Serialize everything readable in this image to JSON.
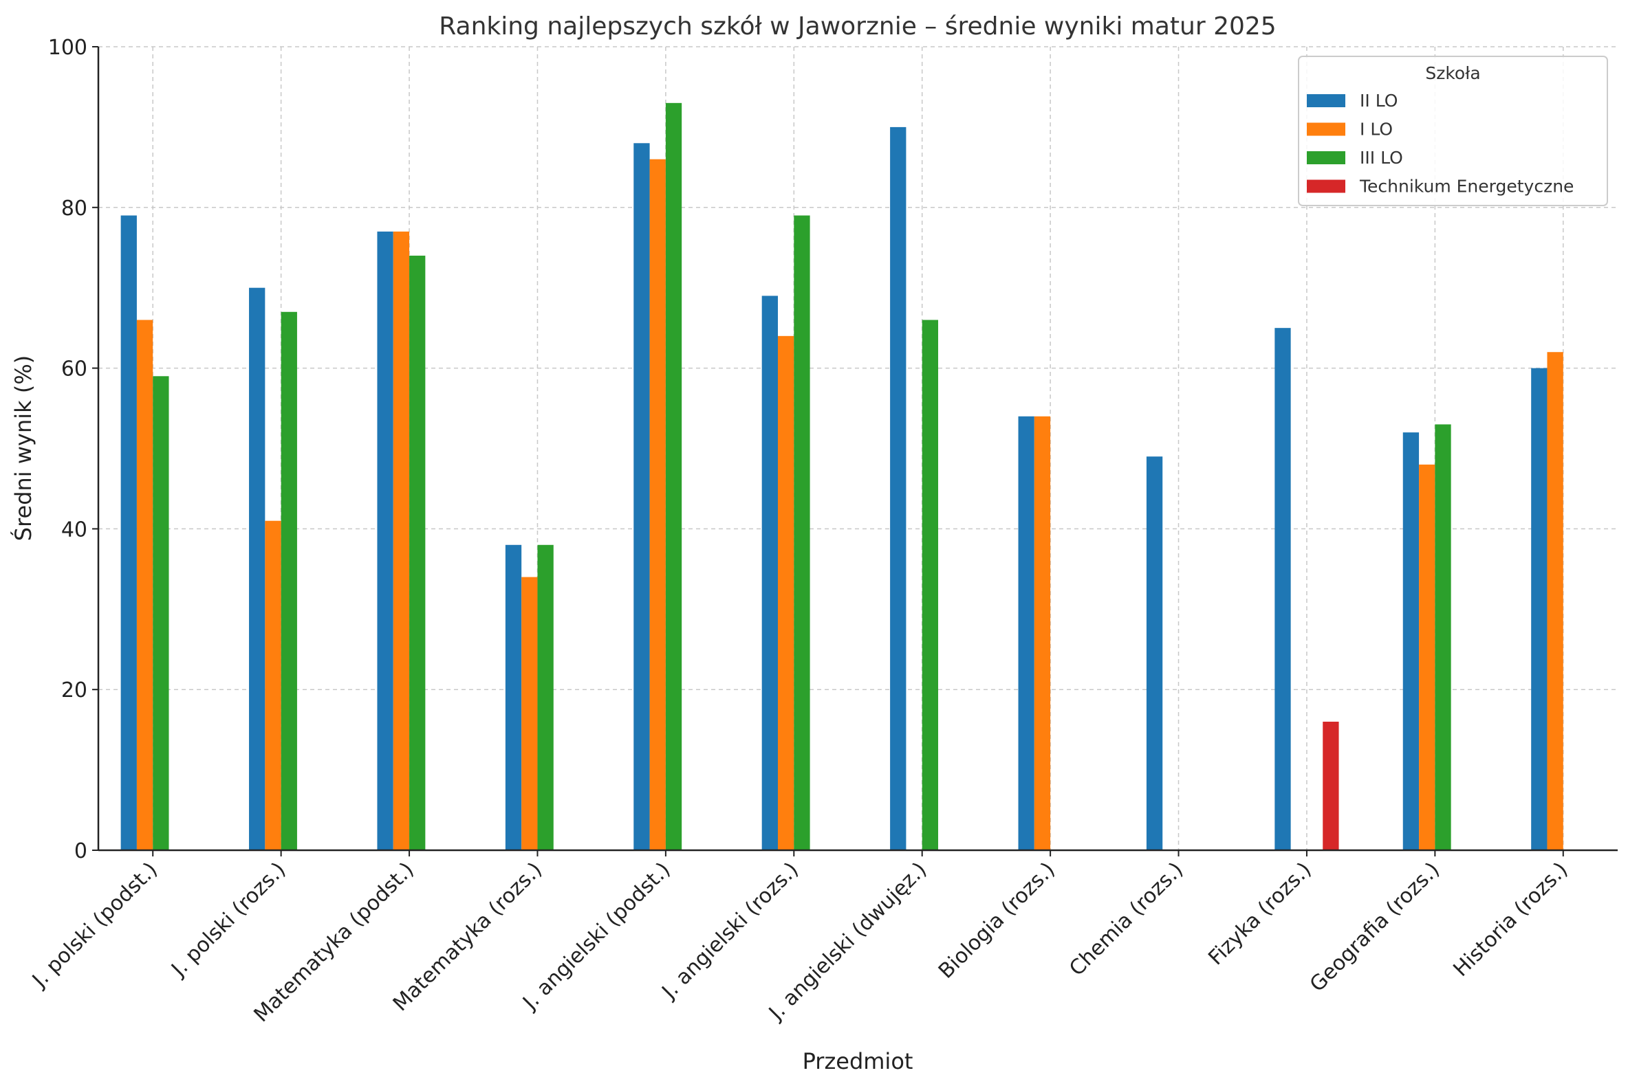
{
  "chart_data": {
    "type": "bar",
    "title": "Ranking najlepszych szkół w Jaworznie – średnie wyniki matur 2025",
    "xlabel": "Przedmiot",
    "ylabel": "Średni wynik (%)",
    "ylim": [
      0,
      100
    ],
    "yticks": [
      0,
      20,
      40,
      60,
      80,
      100
    ],
    "grid": true,
    "legend": {
      "title": "Szkoła",
      "placement": "top-right"
    },
    "categories": [
      "J. polski (podst.)",
      "J. polski (rozs.)",
      "Matematyka (podst.)",
      "Matematyka (rozs.)",
      "J. angielski (podst.)",
      "J. angielski (rozs.)",
      "J. angielski (dwujęz.)",
      "Biologia (rozs.)",
      "Chemia (rozs.)",
      "Fizyka (rozs.)",
      "Geografia (rozs.)",
      "Historia (rozs.)"
    ],
    "series": [
      {
        "name": "II LO",
        "color": "#1f77b4",
        "values": [
          79,
          70,
          77,
          38,
          88,
          69,
          90,
          54,
          49,
          65,
          52,
          60
        ]
      },
      {
        "name": "I LO",
        "color": "#ff7f0e",
        "values": [
          66,
          41,
          77,
          34,
          86,
          64,
          null,
          54,
          null,
          null,
          48,
          62
        ]
      },
      {
        "name": "III LO",
        "color": "#2ca02c",
        "values": [
          59,
          67,
          74,
          38,
          93,
          79,
          66,
          null,
          null,
          null,
          53,
          null
        ]
      },
      {
        "name": "Technikum Energetyczne",
        "color": "#d62728",
        "values": [
          null,
          null,
          null,
          null,
          null,
          null,
          null,
          null,
          null,
          16,
          null,
          null
        ]
      }
    ]
  }
}
